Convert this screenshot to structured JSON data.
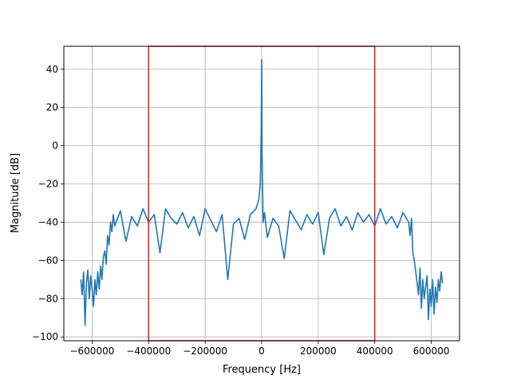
{
  "chart_data": {
    "type": "line",
    "title": "",
    "xlabel": "Frequency [Hz]",
    "ylabel": "Magnitude [dB]",
    "xlim": [
      -700000,
      700000
    ],
    "ylim": [
      -102,
      52
    ],
    "grid": true,
    "xticks": [
      -600000,
      -400000,
      -200000,
      0,
      200000,
      400000,
      600000
    ],
    "xtick_labels": [
      "−600000",
      "−400000",
      "−200000",
      "0",
      "200000",
      "400000",
      "600000"
    ],
    "yticks": [
      -100,
      -80,
      -60,
      -40,
      -20,
      0,
      20,
      40
    ],
    "ytick_labels": [
      "−100",
      "−80",
      "−60",
      "−40",
      "−20",
      "0",
      "20",
      "40"
    ],
    "series": [
      {
        "color": "#1f77b4",
        "x": [
          -640000,
          -635000,
          -630000,
          -625000,
          -620000,
          -615000,
          -610000,
          -605000,
          -600000,
          -595000,
          -590000,
          -585000,
          -580000,
          -575000,
          -570000,
          -565000,
          -560000,
          -555000,
          -550000,
          -545000,
          -540000,
          -535000,
          -530000,
          -525000,
          -520000,
          -500000,
          -480000,
          -460000,
          -440000,
          -420000,
          -400000,
          -380000,
          -360000,
          -340000,
          -320000,
          -300000,
          -280000,
          -260000,
          -240000,
          -220000,
          -200000,
          -180000,
          -160000,
          -140000,
          -120000,
          -100000,
          -80000,
          -60000,
          -40000,
          -20000,
          -10000,
          -5000,
          -3000,
          -1500,
          0,
          1500,
          3000,
          5000,
          10000,
          20000,
          40000,
          60000,
          80000,
          100000,
          120000,
          140000,
          160000,
          180000,
          200000,
          220000,
          240000,
          260000,
          280000,
          300000,
          320000,
          340000,
          360000,
          380000,
          400000,
          420000,
          440000,
          460000,
          480000,
          500000,
          520000,
          525000,
          530000,
          535000,
          540000,
          545000,
          550000,
          555000,
          560000,
          565000,
          570000,
          575000,
          580000,
          585000,
          590000,
          595000,
          600000,
          605000,
          610000,
          615000,
          620000,
          625000,
          630000,
          635000,
          640000
        ],
        "y": [
          -70,
          -78,
          -66,
          -94,
          -72,
          -65,
          -80,
          -68,
          -75,
          -84,
          -70,
          -78,
          -66,
          -75,
          -63,
          -70,
          -58,
          -55,
          -62,
          -47,
          -52,
          -40,
          -45,
          -36,
          -42,
          -34,
          -50,
          -37,
          -42,
          -33,
          -40,
          -36,
          -56,
          -33,
          -38,
          -41,
          -35,
          -43,
          -37,
          -47,
          -33,
          -39,
          -45,
          -36,
          -70,
          -41,
          -38,
          -49,
          -36,
          -33,
          -28,
          -20,
          -8,
          10,
          45,
          -5,
          -22,
          -40,
          -35,
          -48,
          -38,
          -42,
          -59,
          -34,
          -39,
          -44,
          -36,
          -41,
          -35,
          -57,
          -38,
          -33,
          -42,
          -37,
          -44,
          -35,
          -40,
          -36,
          -42,
          -33,
          -41,
          -37,
          -43,
          -35,
          -40,
          -47,
          -38,
          -56,
          -60,
          -66,
          -72,
          -78,
          -64,
          -85,
          -70,
          -80,
          -74,
          -68,
          -91,
          -75,
          -84,
          -70,
          -88,
          -74,
          -82,
          -70,
          -76,
          -66,
          -72
        ]
      }
    ],
    "annotations": [
      {
        "type": "rectangle",
        "color": "#e31a1c",
        "x0": -400000,
        "x1": 400000,
        "y0": -102,
        "y1": 52
      }
    ]
  }
}
